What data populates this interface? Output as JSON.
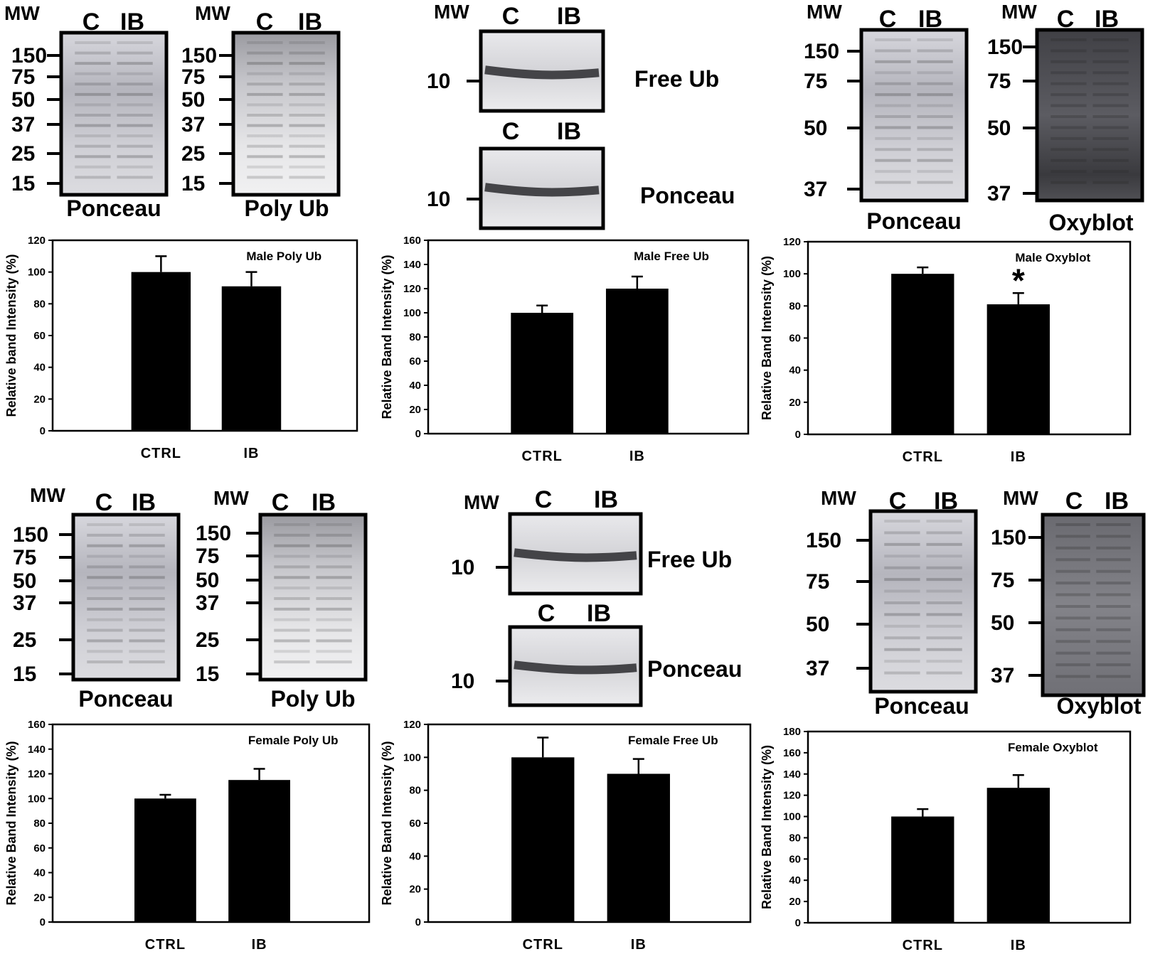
{
  "palette": {
    "ink": "#000000",
    "paper": "#ffffff",
    "ponceau": "#c8c8d0",
    "blot": "#6a6a70",
    "darkblot": "#3a3a3e"
  },
  "panels": [
    {
      "id": "male-poly",
      "blots": [
        {
          "mw": "MW",
          "lanes": [
            "C",
            "IB"
          ],
          "markers": [
            "150",
            "75",
            "50",
            "37",
            "25",
            "15"
          ],
          "caption": "Ponceau",
          "tone": "ponceau"
        },
        {
          "mw": "MW",
          "lanes": [
            "C",
            "IB"
          ],
          "markers": [
            "150",
            "75",
            "50",
            "37",
            "25",
            "15"
          ],
          "caption": "Poly Ub",
          "tone": "light"
        }
      ]
    },
    {
      "id": "male-free",
      "blots": [
        {
          "mw": "MW",
          "lanes": [
            "C",
            "IB"
          ],
          "markers": [
            "10"
          ],
          "caption": "Free Ub",
          "tone": "band"
        },
        {
          "mw": "",
          "lanes": [
            "C",
            "IB"
          ],
          "markers": [
            "10"
          ],
          "caption": "Ponceau",
          "tone": "band"
        }
      ]
    },
    {
      "id": "male-oxy",
      "blots": [
        {
          "mw": "MW",
          "lanes": [
            "C",
            "IB"
          ],
          "markers": [
            "150",
            "75",
            "50",
            "37"
          ],
          "caption": "Ponceau",
          "tone": "ponceau"
        },
        {
          "mw": "MW",
          "lanes": [
            "C",
            "IB"
          ],
          "markers": [
            "150",
            "75",
            "50",
            "37"
          ],
          "caption": "Oxyblot",
          "tone": "dark"
        }
      ]
    },
    {
      "id": "female-poly",
      "blots": [
        {
          "mw": "MW",
          "lanes": [
            "C",
            "IB"
          ],
          "markers": [
            "150",
            "75",
            "50",
            "37",
            "25",
            "15"
          ],
          "caption": "Ponceau",
          "tone": "ponceau"
        },
        {
          "mw": "MW",
          "lanes": [
            "C",
            "IB"
          ],
          "markers": [
            "150",
            "75",
            "50",
            "37",
            "25",
            "15"
          ],
          "caption": "Poly Ub",
          "tone": "light"
        }
      ]
    },
    {
      "id": "female-free",
      "blots": [
        {
          "mw": "MW",
          "lanes": [
            "C",
            "IB"
          ],
          "markers": [
            "10"
          ],
          "caption": "Free Ub",
          "tone": "band"
        },
        {
          "mw": "",
          "lanes": [
            "C",
            "IB"
          ],
          "markers": [
            "10"
          ],
          "caption": "Ponceau",
          "tone": "band"
        }
      ]
    },
    {
      "id": "female-oxy",
      "blots": [
        {
          "mw": "MW",
          "lanes": [
            "C",
            "IB"
          ],
          "markers": [
            "150",
            "75",
            "50",
            "37"
          ],
          "caption": "Ponceau",
          "tone": "ponceau"
        },
        {
          "mw": "MW",
          "lanes": [
            "C",
            "IB"
          ],
          "markers": [
            "150",
            "75",
            "50",
            "37"
          ],
          "caption": "Oxyblot",
          "tone": "mid"
        }
      ]
    }
  ],
  "chart_data": [
    {
      "type": "bar",
      "title": "Male Poly Ub",
      "categories": [
        "CTRL",
        "IB"
      ],
      "values": [
        100,
        91
      ],
      "errors": [
        10,
        9
      ],
      "ylabel": "Relative band Intensity (%)",
      "xlabel": "",
      "ylim": [
        0,
        120
      ],
      "ystep": 20,
      "significance": [
        "",
        ""
      ]
    },
    {
      "type": "bar",
      "title": "Male Free Ub",
      "categories": [
        "CTRL",
        "IB"
      ],
      "values": [
        100,
        120
      ],
      "errors": [
        6,
        10
      ],
      "ylabel": "Relative Band Intensity (%)",
      "xlabel": "",
      "ylim": [
        0,
        160
      ],
      "ystep": 20,
      "significance": [
        "",
        ""
      ]
    },
    {
      "type": "bar",
      "title": "Male Oxyblot",
      "categories": [
        "CTRL",
        "IB"
      ],
      "values": [
        100,
        81
      ],
      "errors": [
        4,
        7
      ],
      "ylabel": "Relative Band Intensity (%)",
      "xlabel": "",
      "ylim": [
        0,
        120
      ],
      "ystep": 20,
      "significance": [
        "",
        "*"
      ]
    },
    {
      "type": "bar",
      "title": "Female Poly Ub",
      "categories": [
        "CTRL",
        "IB"
      ],
      "values": [
        100,
        115
      ],
      "errors": [
        3,
        9
      ],
      "ylabel": "Relative Band Intensity (%)",
      "xlabel": "",
      "ylim": [
        0,
        160
      ],
      "ystep": 20,
      "significance": [
        "",
        ""
      ]
    },
    {
      "type": "bar",
      "title": "Female Free Ub",
      "categories": [
        "CTRL",
        "IB"
      ],
      "values": [
        100,
        90
      ],
      "errors": [
        12,
        9
      ],
      "ylabel": "Relative Band Intensity (%)",
      "xlabel": "",
      "ylim": [
        0,
        120
      ],
      "ystep": 20,
      "significance": [
        "",
        ""
      ]
    },
    {
      "type": "bar",
      "title": "Female Oxyblot",
      "categories": [
        "CTRL",
        "IB"
      ],
      "values": [
        100,
        127
      ],
      "errors": [
        7,
        12
      ],
      "ylabel": "Relative Band Intensity (%)",
      "xlabel": "",
      "ylim": [
        0,
        180
      ],
      "ystep": 20,
      "significance": [
        "",
        ""
      ]
    }
  ]
}
